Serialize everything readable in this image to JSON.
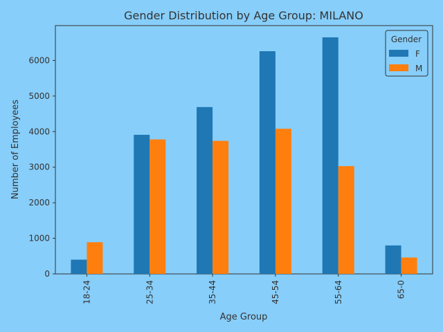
{
  "chart_data": {
    "type": "bar",
    "title": "Gender Distribution by Age Group: MILANO",
    "xlabel": "Age Group",
    "ylabel": "Number of Employees",
    "categories": [
      "18-24",
      "25-34",
      "35-44",
      "45-54",
      "55-64",
      "65-0"
    ],
    "series": [
      {
        "name": "F",
        "color": "#1f77b4",
        "values": [
          400,
          3910,
          4690,
          6260,
          6650,
          800
        ]
      },
      {
        "name": "M",
        "color": "#ff7f0e",
        "values": [
          890,
          3780,
          3740,
          4080,
          3030,
          460
        ]
      }
    ],
    "ylim": [
      0,
      6980
    ],
    "yticks": [
      0,
      1000,
      2000,
      3000,
      4000,
      5000,
      6000
    ],
    "legend": {
      "title": "Gender",
      "position": "top-right"
    },
    "grid": false,
    "background": "#87cefa"
  }
}
